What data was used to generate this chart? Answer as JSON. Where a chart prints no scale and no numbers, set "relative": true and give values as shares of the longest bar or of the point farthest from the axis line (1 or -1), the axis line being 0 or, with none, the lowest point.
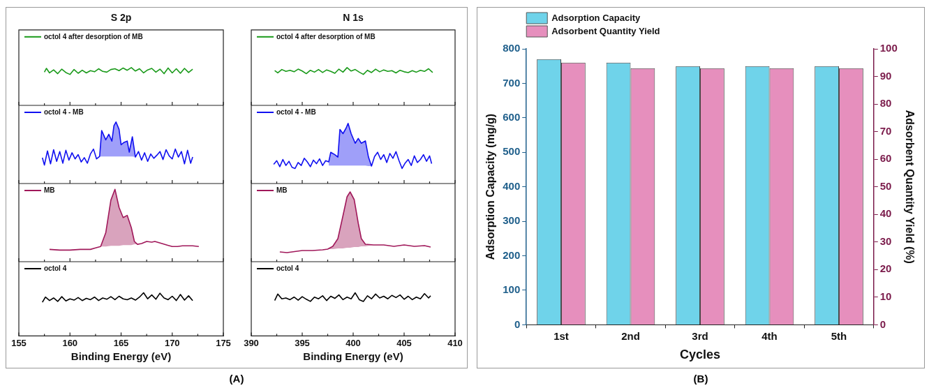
{
  "chart_data": [
    {
      "type": "line",
      "title": "S 2p",
      "relative": true,
      "legend": "top left",
      "tick_labels": false,
      "xlim": [
        155,
        175
      ],
      "xticks": [
        155,
        {
          "value": 157.5,
          "label": null
        },
        160,
        {
          "value": 162.5,
          "label": null
        },
        165,
        {
          "value": 167.5,
          "label": null
        },
        170,
        {
          "value": 172.5,
          "label": null
        },
        175
      ],
      "series": [
        {
          "name": "octol 4 after desorption of MB",
          "color": "#1a9a1a",
          "x": [
            157.5,
            157.7,
            158.0,
            158.4,
            158.8,
            159.2,
            159.6,
            160.0,
            160.4,
            160.8,
            161.2,
            161.6,
            162.0,
            162.4,
            162.8,
            163.2,
            163.6,
            164.0,
            164.4,
            164.8,
            165.2,
            165.6,
            166.0,
            166.4,
            166.8,
            167.2,
            167.6,
            168.0,
            168.4,
            168.8,
            169.2,
            169.6,
            170.0,
            170.4,
            170.8,
            171.2,
            171.6,
            172.0
          ],
          "values": [
            0.88,
            0.98,
            0.86,
            0.94,
            0.84,
            0.96,
            0.87,
            0.82,
            0.95,
            0.85,
            0.93,
            0.86,
            0.92,
            0.89,
            0.97,
            0.9,
            0.88,
            0.95,
            0.97,
            0.92,
            0.99,
            0.93,
            1.0,
            0.91,
            0.97,
            0.86,
            0.94,
            0.98,
            0.88,
            0.96,
            0.84,
            0.99,
            0.86,
            0.97,
            0.85,
            0.98,
            0.87,
            0.96
          ]
        }
      ]
    },
    {
      "type": "line",
      "relative": true,
      "legend": "top left",
      "tick_labels": false,
      "xlim": [
        155,
        175
      ],
      "xticks": [
        155,
        {
          "value": 157.5,
          "label": null
        },
        160,
        {
          "value": 162.5,
          "label": null
        },
        165,
        {
          "value": 167.5,
          "label": null
        },
        170,
        {
          "value": 172.5,
          "label": null
        },
        175
      ],
      "series": [
        {
          "name": "octol 4 - MB",
          "color": "#1010f0",
          "lower": [
            null,
            null,
            null,
            null,
            null,
            null,
            null,
            null,
            null,
            null,
            null,
            null,
            null,
            null,
            null,
            null,
            null,
            null,
            null,
            0.44,
            0.44,
            0.44,
            0.44,
            0.44,
            0.44,
            0.44,
            0.44,
            0.44,
            0.44,
            0.44,
            0.44,
            0.44,
            0.43,
            null,
            null,
            null,
            null,
            null,
            null,
            null,
            null,
            null,
            null,
            null,
            null,
            null,
            null,
            null,
            null,
            null,
            null,
            null
          ],
          "upper": [
            null,
            null,
            null,
            null,
            null,
            null,
            null,
            null,
            null,
            null,
            null,
            null,
            null,
            null,
            null,
            null,
            null,
            null,
            null,
            0.44,
            0.86,
            0.71,
            0.8,
            0.69,
            0.94,
            1.0,
            0.88,
            0.63,
            0.67,
            0.69,
            0.51,
            0.76,
            0.43,
            null,
            null,
            null,
            null,
            null,
            null,
            null,
            null,
            null,
            null,
            null,
            null,
            null,
            null,
            null,
            null,
            null,
            null,
            null
          ],
          "x": [
            157.3,
            157.5,
            157.8,
            158.1,
            158.4,
            158.7,
            159.0,
            159.3,
            159.6,
            159.9,
            160.2,
            160.5,
            160.8,
            161.1,
            161.4,
            161.7,
            162.0,
            162.3,
            162.6,
            162.9,
            163.1,
            163.5,
            163.8,
            164.1,
            164.3,
            164.5,
            164.8,
            165.0,
            165.3,
            165.6,
            165.8,
            166.1,
            166.4,
            166.7,
            167.0,
            167.3,
            167.6,
            167.9,
            168.2,
            168.5,
            168.8,
            169.1,
            169.4,
            169.7,
            170.0,
            170.3,
            170.6,
            170.9,
            171.2,
            171.5,
            171.8,
            172.0
          ],
          "values": [
            0.42,
            0.3,
            0.53,
            0.32,
            0.55,
            0.36,
            0.52,
            0.33,
            0.54,
            0.38,
            0.5,
            0.4,
            0.47,
            0.35,
            0.42,
            0.33,
            0.48,
            0.56,
            0.4,
            0.44,
            0.86,
            0.71,
            0.8,
            0.69,
            0.94,
            1.0,
            0.88,
            0.63,
            0.67,
            0.69,
            0.51,
            0.76,
            0.43,
            0.52,
            0.38,
            0.5,
            0.36,
            0.48,
            0.41,
            0.46,
            0.52,
            0.39,
            0.55,
            0.45,
            0.4,
            0.56,
            0.43,
            0.52,
            0.32,
            0.54,
            0.33,
            0.43
          ]
        }
      ]
    },
    {
      "type": "line",
      "relative": true,
      "legend": "top left",
      "tick_labels": false,
      "xlim": [
        155,
        175
      ],
      "xticks": [
        155,
        {
          "value": 157.5,
          "label": null
        },
        160,
        {
          "value": 162.5,
          "label": null
        },
        165,
        {
          "value": 167.5,
          "label": null
        },
        170,
        {
          "value": 172.5,
          "label": null
        },
        175
      ],
      "series": [
        {
          "name": "MB",
          "color": "#a0185a",
          "lower": [
            null,
            null,
            null,
            null,
            null,
            null,
            0.21,
            0.21,
            0.22,
            0.22,
            0.22,
            0.23,
            0.23,
            0.23,
            0.24,
            0.24,
            null,
            null,
            null,
            null,
            null,
            null,
            null,
            null,
            null,
            null,
            null
          ],
          "upper": [
            null,
            null,
            null,
            null,
            null,
            null,
            0.21,
            0.4,
            0.85,
            1.0,
            0.75,
            0.61,
            0.64,
            0.47,
            0.28,
            0.24,
            null,
            null,
            null,
            null,
            null,
            null,
            null,
            null,
            null,
            null,
            null
          ],
          "x": [
            158,
            159,
            160,
            161,
            162,
            162.5,
            163,
            163.5,
            164,
            164.4,
            164.8,
            165.2,
            165.6,
            166,
            166.3,
            166.6,
            167,
            167.5,
            168,
            168.3,
            169,
            169.5,
            170,
            170.5,
            171,
            172,
            172.6
          ],
          "values": [
            0.17,
            0.16,
            0.16,
            0.17,
            0.17,
            0.19,
            0.21,
            0.4,
            0.85,
            1.0,
            0.75,
            0.61,
            0.64,
            0.47,
            0.28,
            0.24,
            0.25,
            0.28,
            0.27,
            0.28,
            0.25,
            0.23,
            0.21,
            0.21,
            0.22,
            0.22,
            0.21
          ]
        }
      ]
    },
    {
      "type": "line",
      "xlabel": "Binding Energy (eV)",
      "relative": true,
      "legend": "top left",
      "tick_labels": "x",
      "annotations": [
        "(A)"
      ],
      "xlim": [
        155,
        175
      ],
      "xticks": [
        155,
        {
          "value": 157.5,
          "label": null
        },
        160,
        {
          "value": 162.5,
          "label": null
        },
        165,
        {
          "value": 167.5,
          "label": null
        },
        170,
        {
          "value": 172.5,
          "label": null
        },
        175
      ],
      "series": [
        {
          "name": "octol 4",
          "color": "#000000",
          "x": [
            157.3,
            157.6,
            158.0,
            158.4,
            158.8,
            159.2,
            159.6,
            160.0,
            160.4,
            160.8,
            161.2,
            161.6,
            162.0,
            162.4,
            162.8,
            163.2,
            163.6,
            164.0,
            164.4,
            164.8,
            165.2,
            165.6,
            166.0,
            166.4,
            166.8,
            167.2,
            167.6,
            168.0,
            168.4,
            168.8,
            169.2,
            169.6,
            170.0,
            170.4,
            170.8,
            171.2,
            171.6,
            172.0
          ],
          "values": [
            0.78,
            0.9,
            0.82,
            0.88,
            0.8,
            0.91,
            0.81,
            0.86,
            0.83,
            0.89,
            0.82,
            0.87,
            0.84,
            0.9,
            0.82,
            0.88,
            0.85,
            0.91,
            0.84,
            0.92,
            0.86,
            0.84,
            0.88,
            0.83,
            0.9,
            1.0,
            0.86,
            0.95,
            0.85,
            0.99,
            0.88,
            0.84,
            0.92,
            0.82,
            0.96,
            0.83,
            0.93,
            0.82
          ]
        }
      ]
    },
    {
      "type": "line",
      "title": "N 1s",
      "relative": true,
      "legend": "top left",
      "tick_labels": false,
      "xlim": [
        390,
        410
      ],
      "xticks": [
        390,
        {
          "value": 392.5,
          "label": null
        },
        395,
        {
          "value": 397.5,
          "label": null
        },
        400,
        {
          "value": 402.5,
          "label": null
        },
        405,
        {
          "value": 407.5,
          "label": null
        },
        410
      ],
      "series": [
        {
          "name": "octol 4 after desorption of MB",
          "color": "#1a9a1a",
          "x": [
            392.3,
            392.6,
            393.0,
            393.4,
            393.8,
            394.2,
            394.6,
            395.0,
            395.4,
            395.8,
            396.2,
            396.6,
            397.0,
            397.4,
            397.8,
            398.2,
            398.6,
            399.0,
            399.4,
            399.8,
            400.2,
            400.6,
            401.0,
            401.4,
            401.8,
            402.2,
            402.6,
            403.0,
            403.4,
            403.8,
            404.2,
            404.6,
            405.0,
            405.4,
            405.8,
            406.2,
            406.6,
            407.0,
            407.4,
            407.8
          ],
          "values": [
            0.92,
            0.86,
            0.95,
            0.9,
            0.93,
            0.89,
            0.96,
            0.91,
            0.84,
            0.93,
            0.88,
            0.95,
            0.87,
            0.94,
            0.9,
            0.85,
            0.96,
            0.88,
            1.0,
            0.91,
            0.95,
            0.88,
            0.82,
            0.93,
            0.87,
            0.96,
            0.89,
            0.94,
            0.9,
            0.92,
            0.86,
            0.93,
            0.89,
            0.87,
            0.92,
            0.88,
            0.93,
            0.9,
            0.97,
            0.87
          ]
        }
      ]
    },
    {
      "type": "line",
      "relative": true,
      "legend": "top left",
      "tick_labels": false,
      "xlim": [
        390,
        410
      ],
      "xticks": [
        390,
        {
          "value": 392.5,
          "label": null
        },
        395,
        {
          "value": 397.5,
          "label": null
        },
        400,
        {
          "value": 402.5,
          "label": null
        },
        405,
        {
          "value": 407.5,
          "label": null
        },
        410
      ],
      "series": [
        {
          "name": "octol 4 - MB",
          "color": "#1010f0",
          "lower": [
            null,
            null,
            null,
            null,
            null,
            null,
            null,
            null,
            null,
            null,
            null,
            null,
            null,
            null,
            null,
            null,
            null,
            null,
            0.3,
            0.3,
            0.3,
            0.3,
            0.3,
            0.3,
            0.3,
            0.3,
            0.3,
            0.3,
            0.3,
            0.3,
            0.3,
            0.29,
            0.29,
            null,
            null,
            null,
            null,
            null,
            null,
            null,
            null,
            null,
            null,
            null,
            null,
            null,
            null,
            null,
            null,
            null,
            null,
            null,
            null
          ],
          "upper": [
            null,
            null,
            null,
            null,
            null,
            null,
            null,
            null,
            null,
            null,
            null,
            null,
            null,
            null,
            null,
            null,
            null,
            null,
            0.36,
            0.52,
            0.48,
            0.44,
            0.9,
            0.83,
            0.92,
            1.0,
            0.83,
            0.67,
            0.75,
            0.67,
            0.71,
            0.44,
            0.29,
            null,
            null,
            null,
            null,
            null,
            null,
            null,
            null,
            null,
            null,
            null,
            null,
            null,
            null,
            null,
            null,
            null,
            null,
            null,
            null
          ],
          "x": [
            392.2,
            392.5,
            392.8,
            393.1,
            393.4,
            393.7,
            394.0,
            394.3,
            394.6,
            394.9,
            395.2,
            395.5,
            395.8,
            396.1,
            396.4,
            396.7,
            397.0,
            397.3,
            397.6,
            397.8,
            398.2,
            398.5,
            398.7,
            399.0,
            399.3,
            399.5,
            399.8,
            400.2,
            400.5,
            400.8,
            401.2,
            401.5,
            401.8,
            402.1,
            402.4,
            402.7,
            403.0,
            403.3,
            403.6,
            403.9,
            404.2,
            404.5,
            404.8,
            405.1,
            405.4,
            405.7,
            406.0,
            406.3,
            406.6,
            406.9,
            407.2,
            407.5,
            407.7
          ],
          "values": [
            0.32,
            0.38,
            0.28,
            0.4,
            0.3,
            0.37,
            0.27,
            0.25,
            0.35,
            0.3,
            0.42,
            0.36,
            0.28,
            0.39,
            0.33,
            0.41,
            0.3,
            0.38,
            0.36,
            0.52,
            0.48,
            0.44,
            0.9,
            0.83,
            0.92,
            1.0,
            0.83,
            0.67,
            0.75,
            0.67,
            0.71,
            0.44,
            0.29,
            0.45,
            0.52,
            0.4,
            0.48,
            0.35,
            0.5,
            0.42,
            0.53,
            0.38,
            0.25,
            0.34,
            0.4,
            0.3,
            0.46,
            0.35,
            0.4,
            0.48,
            0.37,
            0.46,
            0.33
          ]
        }
      ]
    },
    {
      "type": "line",
      "relative": true,
      "legend": "top left",
      "tick_labels": false,
      "xlim": [
        390,
        410
      ],
      "xticks": [
        390,
        {
          "value": 392.5,
          "label": null
        },
        395,
        {
          "value": 397.5,
          "label": null
        },
        400,
        {
          "value": 402.5,
          "label": null
        },
        405,
        {
          "value": 407.5,
          "label": null
        },
        410
      ],
      "series": [
        {
          "name": "MB",
          "color": "#a0185a",
          "lower": [
            null,
            null,
            null,
            null,
            null,
            null,
            0.18,
            0.18,
            0.19,
            0.19,
            0.2,
            0.2,
            0.21,
            0.21,
            0.22,
            0.22,
            0.24,
            null,
            null,
            null,
            null,
            null,
            null
          ],
          "upper": [
            null,
            null,
            null,
            null,
            null,
            null,
            0.18,
            0.22,
            0.33,
            0.66,
            0.93,
            1.0,
            0.89,
            0.55,
            0.33,
            0.25,
            0.24,
            null,
            null,
            null,
            null,
            null,
            null
          ],
          "x": [
            392.8,
            393.5,
            394,
            395,
            396,
            397,
            397.5,
            398,
            398.5,
            399,
            399.4,
            399.7,
            400.1,
            400.5,
            400.8,
            401.2,
            402,
            403,
            404,
            405,
            406,
            407,
            407.6
          ],
          "values": [
            0.14,
            0.13,
            0.14,
            0.16,
            0.16,
            0.17,
            0.18,
            0.22,
            0.33,
            0.66,
            0.93,
            1.0,
            0.89,
            0.55,
            0.33,
            0.25,
            0.24,
            0.24,
            0.22,
            0.24,
            0.22,
            0.23,
            0.21
          ]
        }
      ]
    },
    {
      "type": "line",
      "xlabel": "Binding Energy (eV)",
      "relative": true,
      "legend": "top left",
      "tick_labels": "x",
      "xlim": [
        390,
        410
      ],
      "xticks": [
        390,
        {
          "value": 392.5,
          "label": null
        },
        395,
        {
          "value": 397.5,
          "label": null
        },
        400,
        {
          "value": 402.5,
          "label": null
        },
        405,
        {
          "value": 407.5,
          "label": null
        },
        410
      ],
      "series": [
        {
          "name": "octol 4",
          "color": "#000000",
          "x": [
            392.3,
            392.6,
            393.0,
            393.4,
            393.8,
            394.2,
            394.6,
            395.0,
            395.4,
            395.8,
            396.2,
            396.6,
            397.0,
            397.4,
            397.8,
            398.2,
            398.6,
            399.0,
            399.4,
            399.8,
            400.2,
            400.6,
            401.0,
            401.4,
            401.8,
            402.2,
            402.6,
            403.0,
            403.4,
            403.8,
            404.2,
            404.6,
            405.0,
            405.4,
            405.8,
            406.2,
            406.6,
            407.0,
            407.4,
            407.6
          ],
          "values": [
            0.82,
            0.97,
            0.86,
            0.88,
            0.84,
            0.9,
            0.83,
            0.91,
            0.85,
            0.8,
            0.9,
            0.86,
            0.93,
            0.82,
            0.92,
            0.87,
            0.95,
            0.84,
            0.9,
            0.86,
            1.0,
            0.84,
            0.8,
            0.93,
            0.86,
            0.97,
            0.88,
            0.92,
            0.86,
            0.94,
            0.89,
            0.95,
            0.85,
            0.92,
            0.84,
            0.9,
            0.86,
            0.98,
            0.88,
            0.93
          ]
        }
      ]
    },
    {
      "type": "bar",
      "xlabel": "Cycles",
      "ylabel": "Adsorption Capacity (mg/g)",
      "y2label": "Adsorbent Quantity Yield (%)",
      "legend": "top left",
      "annotations": [
        "(B)"
      ],
      "categories": [
        "1st",
        "2nd",
        "3rd",
        "4th",
        "5th"
      ],
      "series": [
        {
          "name": "Adsorption Capacity",
          "color": "#6fd3ea",
          "values": [
            770,
            760,
            750,
            750,
            750
          ]
        },
        {
          "name": "Adsorbent Quantity Yield",
          "color": "#e68fbd",
          "axis": "y2",
          "values": [
            95,
            93,
            93,
            93,
            93
          ]
        }
      ],
      "ylim": [
        0,
        800
      ],
      "yticks": [
        0,
        100,
        200,
        300,
        400,
        500,
        600,
        700,
        800
      ],
      "y2lim": [
        0,
        100
      ],
      "y2ticks": [
        0,
        10,
        20,
        30,
        40,
        50,
        60,
        70,
        80,
        90,
        100
      ]
    }
  ]
}
